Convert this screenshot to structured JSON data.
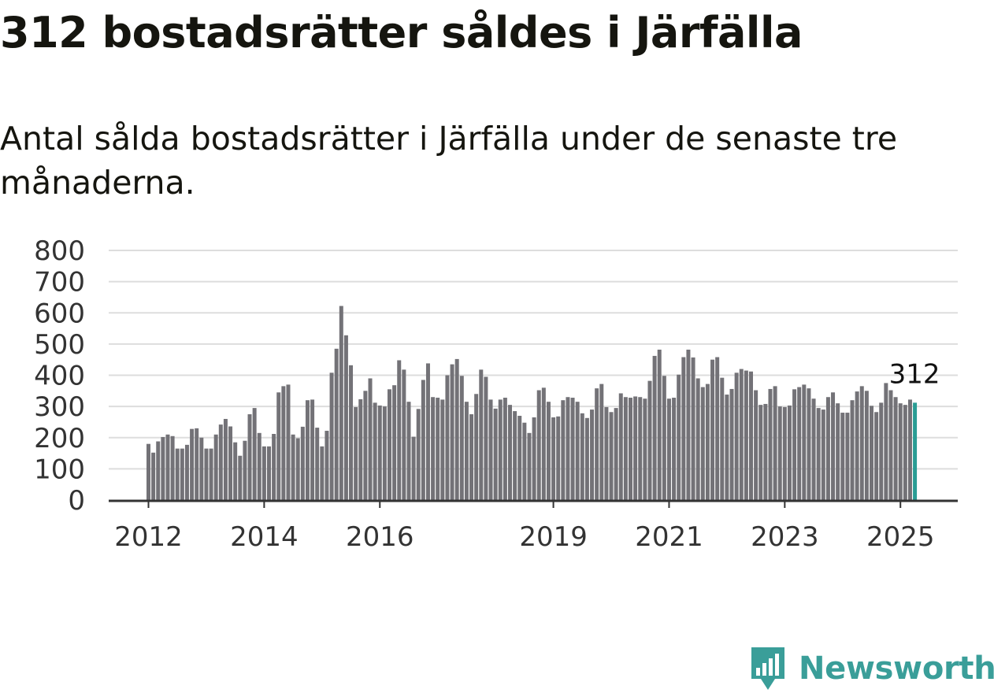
{
  "header": {
    "title": "312 bostadsrätter såldes i Järfälla",
    "subtitle": "Antal sålda bostadsrätter i Järfälla under de senaste tre månaderna."
  },
  "brand": {
    "name": "Newsworthy",
    "icon": "newsworthy-logo-icon",
    "color": "#3a9e99"
  },
  "colors": {
    "bar": "#737277",
    "highlight": "#2a9d94",
    "grid": "#dddddd",
    "axis": "#333333"
  },
  "chart_data": {
    "type": "bar",
    "x_start": "2012-01",
    "x_ticks": [
      "2012",
      "2014",
      "2016",
      "2019",
      "2021",
      "2023",
      "2025"
    ],
    "y_ticks": [
      0,
      100,
      200,
      300,
      400,
      500,
      600,
      700,
      800
    ],
    "ylim": [
      0,
      800
    ],
    "grid": true,
    "annotation": {
      "label": "312",
      "target": "last"
    },
    "values": [
      180,
      152,
      188,
      202,
      210,
      205,
      165,
      165,
      177,
      228,
      230,
      200,
      165,
      165,
      210,
      242,
      260,
      236,
      185,
      142,
      190,
      275,
      295,
      215,
      172,
      172,
      212,
      345,
      365,
      370,
      210,
      198,
      235,
      320,
      322,
      232,
      172,
      222,
      408,
      485,
      622,
      528,
      432,
      298,
      323,
      350,
      390,
      312,
      303,
      300,
      355,
      368,
      448,
      418,
      315,
      203,
      292,
      385,
      438,
      330,
      328,
      322,
      400,
      435,
      452,
      398,
      315,
      275,
      340,
      418,
      395,
      322,
      293,
      322,
      328,
      305,
      285,
      270,
      248,
      215,
      265,
      352,
      360,
      315,
      265,
      268,
      320,
      330,
      328,
      315,
      278,
      263,
      290,
      358,
      372,
      298,
      282,
      295,
      342,
      330,
      328,
      332,
      330,
      325,
      382,
      462,
      482,
      398,
      325,
      328,
      402,
      458,
      482,
      457,
      390,
      362,
      372,
      450,
      458,
      392,
      338,
      356,
      408,
      420,
      415,
      412,
      352,
      305,
      308,
      356,
      365,
      300,
      298,
      303,
      355,
      362,
      370,
      358,
      325,
      295,
      290,
      330,
      345,
      310,
      280,
      280,
      320,
      348,
      365,
      350,
      302,
      282,
      312,
      375,
      352,
      330,
      310,
      305,
      322,
      312
    ]
  }
}
